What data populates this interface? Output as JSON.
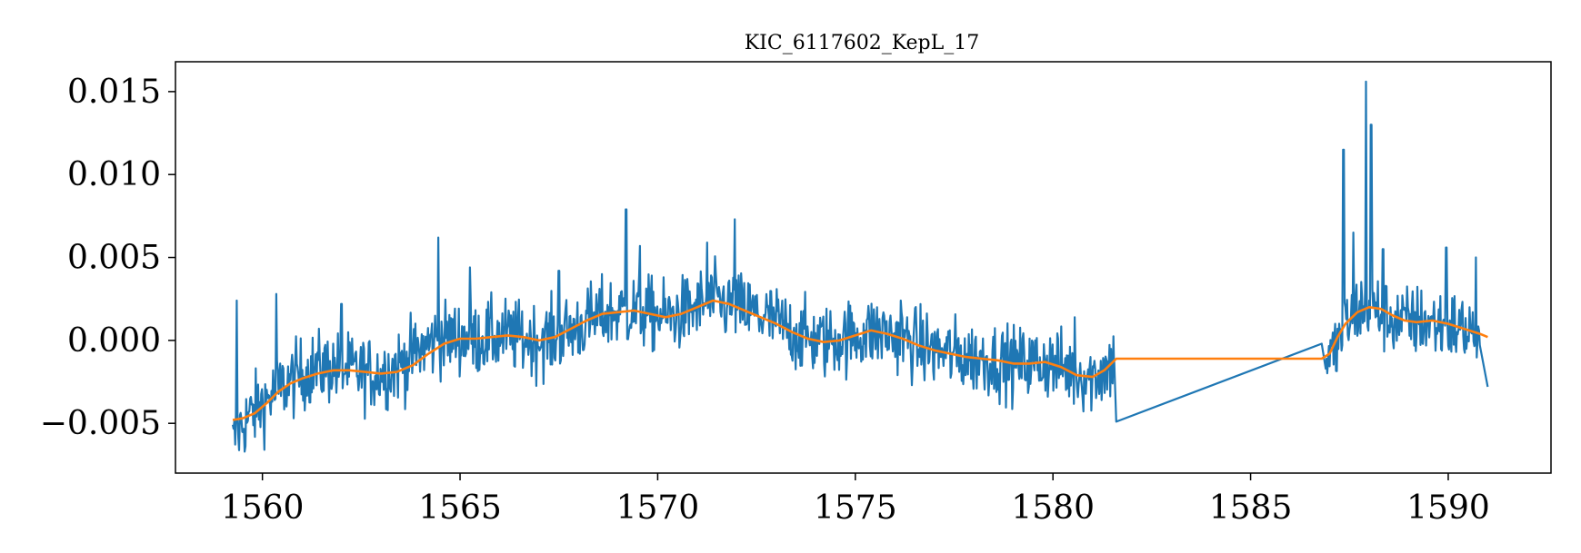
{
  "chart_data": {
    "type": "line",
    "title": "KIC_6117602_KepL_17",
    "xlabel": "",
    "ylabel": "",
    "xlim": [
      1557.8,
      1592.6
    ],
    "ylim": [
      -0.008,
      0.0168
    ],
    "grid": false,
    "x_ticks": [
      1560,
      1565,
      1570,
      1575,
      1580,
      1585,
      1590
    ],
    "x_tick_labels": [
      "1560",
      "1565",
      "1570",
      "1575",
      "1580",
      "1585",
      "1590"
    ],
    "y_ticks": [
      -0.005,
      0.0,
      0.005,
      0.01,
      0.015
    ],
    "y_tick_labels": [
      "−0.005",
      "0.000",
      "0.005",
      "0.010",
      "0.015"
    ],
    "series": [
      {
        "color": "#1f77b4",
        "style": "noisy-flux",
        "x": [
          1559.25,
          1559.45,
          1559.7,
          1560.0,
          1560.3,
          1560.6,
          1560.9,
          1561.2,
          1561.6,
          1562.0,
          1562.4,
          1562.8,
          1563.2,
          1563.6,
          1564.0,
          1564.3,
          1564.6,
          1565.0,
          1565.4,
          1565.8,
          1566.2,
          1566.6,
          1567.0,
          1567.4,
          1567.8,
          1568.2,
          1568.6,
          1569.0,
          1569.4,
          1569.8,
          1570.2,
          1570.6,
          1571.0,
          1571.4,
          1571.8,
          1572.2,
          1572.6,
          1573.0,
          1573.4,
          1573.8,
          1574.2,
          1574.6,
          1575.0,
          1575.4,
          1575.8,
          1576.2,
          1576.6,
          1577.0,
          1577.4,
          1577.8,
          1578.2,
          1578.6,
          1579.0,
          1579.4,
          1579.8,
          1580.2,
          1580.6,
          1581.0,
          1581.3,
          1581.55,
          1581.6,
          1586.8,
          1586.9,
          1587.1,
          1587.3,
          1587.5,
          1587.7,
          1587.9,
          1588.1,
          1588.4,
          1588.7,
          1589.0,
          1589.3,
          1589.6,
          1589.9,
          1590.2,
          1590.5,
          1590.8,
          1591.0
        ],
        "y": [
          -0.0062,
          -0.0052,
          -0.0045,
          -0.0038,
          -0.0032,
          -0.0026,
          -0.0022,
          -0.0018,
          -0.0016,
          -0.0017,
          -0.0019,
          -0.002,
          -0.0018,
          -0.0013,
          -0.0006,
          -0.0001,
          0.0001,
          0.0002,
          0.0001,
          0.0002,
          0.0003,
          0.0001,
          0.0,
          0.0002,
          0.0006,
          0.0011,
          0.0015,
          0.0017,
          0.0018,
          0.0016,
          0.0014,
          0.0016,
          0.002,
          0.0024,
          0.0021,
          0.0018,
          0.0015,
          0.0011,
          0.0005,
          0.0001,
          -0.0001,
          0.0001,
          0.0003,
          0.0005,
          0.0004,
          0.0001,
          -0.0003,
          -0.0006,
          -0.0008,
          -0.001,
          -0.0011,
          -0.0012,
          -0.0014,
          -0.0014,
          -0.0013,
          -0.0016,
          -0.002,
          -0.0022,
          -0.0018,
          -0.0013,
          -0.0049,
          -0.0002,
          -0.001,
          -0.0009,
          0.0003,
          0.0012,
          0.0018,
          0.0021,
          0.0019,
          0.0015,
          0.0012,
          0.0011,
          0.0012,
          0.001,
          0.0009,
          0.0008,
          0.0006,
          0.0004,
          -0.0028
        ],
        "spikes": [
          [
            1559.35,
            0.0024
          ],
          [
            1560.35,
            0.0028
          ],
          [
            1562.0,
            0.0022
          ],
          [
            1564.45,
            0.0062
          ],
          [
            1565.25,
            0.0044
          ],
          [
            1567.5,
            0.0042
          ],
          [
            1569.2,
            0.0079
          ],
          [
            1569.55,
            0.0057
          ],
          [
            1571.25,
            0.0059
          ],
          [
            1571.95,
            0.0073
          ],
          [
            1576.15,
            0.0024
          ],
          [
            1580.55,
            0.0014
          ],
          [
            1587.35,
            0.0115
          ],
          [
            1587.6,
            0.0065
          ],
          [
            1587.92,
            0.0156
          ],
          [
            1588.05,
            0.013
          ],
          [
            1588.35,
            0.0055
          ],
          [
            1589.95,
            0.0056
          ],
          [
            1590.7,
            0.005
          ]
        ]
      },
      {
        "color": "#ff7f0e",
        "style": "smooth-trend",
        "x": [
          1559.25,
          1559.5,
          1559.8,
          1560.1,
          1560.4,
          1560.7,
          1561.0,
          1561.4,
          1561.8,
          1562.2,
          1562.6,
          1563.0,
          1563.4,
          1563.8,
          1564.2,
          1564.6,
          1565.0,
          1565.4,
          1565.8,
          1566.2,
          1566.6,
          1567.0,
          1567.4,
          1567.8,
          1568.2,
          1568.6,
          1569.0,
          1569.4,
          1569.8,
          1570.2,
          1570.6,
          1571.0,
          1571.4,
          1571.8,
          1572.2,
          1572.6,
          1573.0,
          1573.4,
          1573.8,
          1574.2,
          1574.6,
          1575.0,
          1575.4,
          1575.8,
          1576.2,
          1576.6,
          1577.0,
          1577.4,
          1577.8,
          1578.2,
          1578.6,
          1579.0,
          1579.4,
          1579.8,
          1580.2,
          1580.6,
          1581.0,
          1581.3,
          1581.6,
          1586.8,
          1587.0,
          1587.2,
          1587.4,
          1587.7,
          1588.0,
          1588.3,
          1588.6,
          1588.9,
          1589.2,
          1589.6,
          1590.0,
          1590.4,
          1590.8,
          1591.0
        ],
        "y": [
          -0.0048,
          -0.0047,
          -0.0044,
          -0.0038,
          -0.0031,
          -0.0026,
          -0.0023,
          -0.002,
          -0.0018,
          -0.0018,
          -0.0019,
          -0.002,
          -0.0019,
          -0.0015,
          -0.0008,
          -0.0002,
          0.0001,
          0.0001,
          0.0002,
          0.0003,
          0.0002,
          0.0,
          0.0002,
          0.0007,
          0.0012,
          0.0016,
          0.0017,
          0.0018,
          0.0016,
          0.0014,
          0.0016,
          0.002,
          0.0024,
          0.0022,
          0.0018,
          0.0014,
          0.001,
          0.0005,
          0.0001,
          -0.0001,
          0.0,
          0.0003,
          0.0006,
          0.0004,
          0.0001,
          -0.0003,
          -0.0006,
          -0.0008,
          -0.001,
          -0.0011,
          -0.0012,
          -0.0014,
          -0.0014,
          -0.0013,
          -0.0016,
          -0.0021,
          -0.0022,
          -0.0018,
          -0.0011,
          -0.0011,
          -0.0008,
          0.0002,
          0.001,
          0.0017,
          0.002,
          0.0019,
          0.0015,
          0.0012,
          0.0011,
          0.0012,
          0.001,
          0.0007,
          0.0004,
          0.0002
        ]
      }
    ]
  }
}
